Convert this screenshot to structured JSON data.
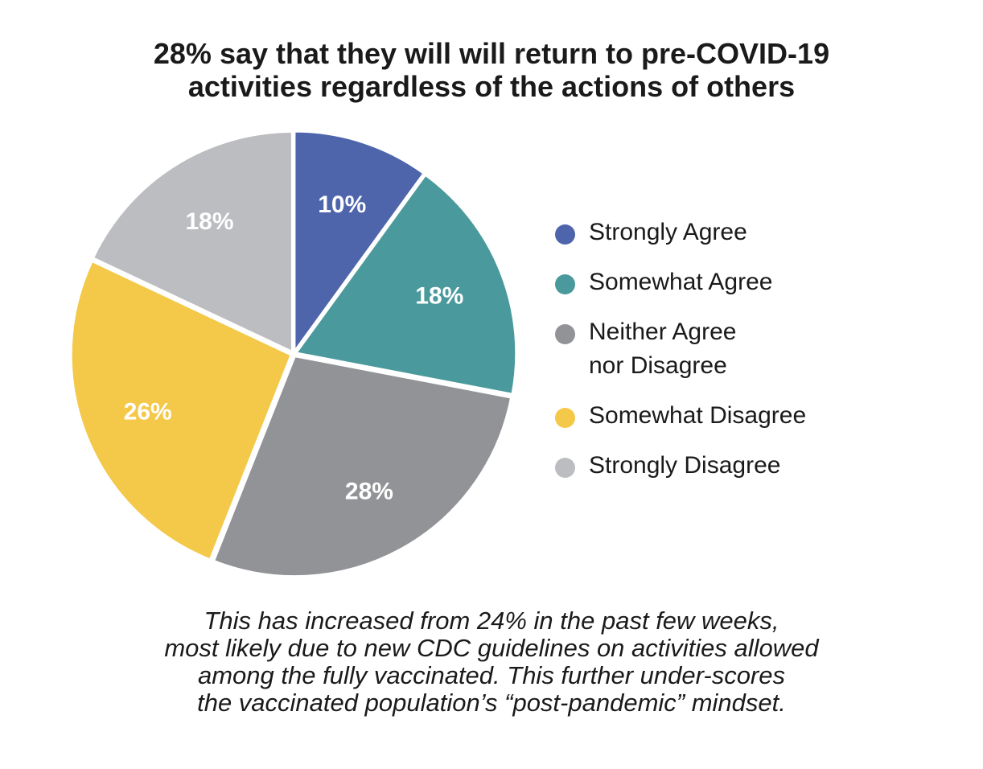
{
  "chart_data": {
    "type": "pie",
    "title": "28% say that they will will return to pre-COVID-19 activities regardless of the actions of others",
    "title_lines": [
      "28% say that they will will return to pre-COVID-19",
      "activities regardless of the actions of others"
    ],
    "slices": [
      {
        "name": "Strongly Agree",
        "value": 10,
        "label": "10%",
        "color": "#4e65ab"
      },
      {
        "name": "Somewhat Agree",
        "value": 18,
        "label": "18%",
        "color": "#4a999c"
      },
      {
        "name": "Neither Agree nor Disagree",
        "value": 28,
        "label": "28%",
        "color": "#929397"
      },
      {
        "name": "Somewhat Disagree",
        "value": 26,
        "label": "26%",
        "color": "#f4c848"
      },
      {
        "name": "Strongly Disagree",
        "value": 18,
        "label": "18%",
        "color": "#bcbdc0"
      }
    ],
    "legend": {
      "placement": "right",
      "items": [
        {
          "lines": [
            "Strongly Agree"
          ],
          "color": "#4e65ab"
        },
        {
          "lines": [
            "Somewhat Agree"
          ],
          "color": "#4a999c"
        },
        {
          "lines": [
            "Neither Agree",
            "nor Disagree"
          ],
          "color": "#929397"
        },
        {
          "lines": [
            "Somewhat Disagree"
          ],
          "color": "#f4c848"
        },
        {
          "lines": [
            "Strongly Disagree"
          ],
          "color": "#bcbdc0"
        }
      ]
    },
    "caption_lines": [
      "This has increased from 24% in the past few weeks,",
      "most likely due to new CDC guidelines on activities allowed",
      "among the fully vaccinated. This further under-scores",
      "the vaccinated population’s “post-pandemic” mindset."
    ]
  }
}
